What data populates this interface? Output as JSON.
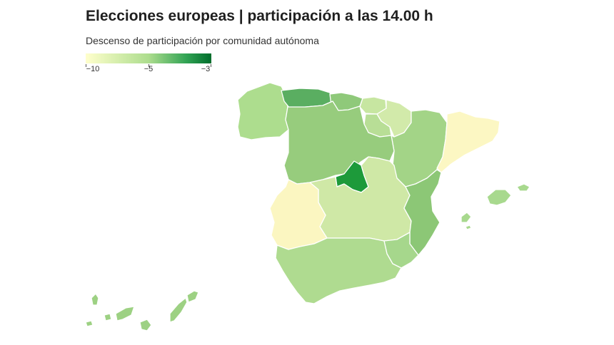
{
  "header": {
    "title": "Elecciones europeas | participación a las 14.00 h",
    "subtitle": "Descenso de participación por comunidad autónoma"
  },
  "legend": {
    "min_label": "−10",
    "mid_label": "−5",
    "max_label": "−3",
    "min_value": -10,
    "mid_value": -5,
    "max_value": -3,
    "colors": [
      "#ffffcc",
      "#addd8e",
      "#31a354",
      "#006d2c"
    ]
  },
  "regions": [
    {
      "name": "Galicia",
      "color": "#addd8e"
    },
    {
      "name": "Asturias",
      "color": "#5aae61"
    },
    {
      "name": "Cantabria",
      "color": "#8fc97a"
    },
    {
      "name": "País Vasco",
      "color": "#c7e6a1"
    },
    {
      "name": "Navarra",
      "color": "#d2eaaa"
    },
    {
      "name": "La Rioja",
      "color": "#b8de96"
    },
    {
      "name": "Aragón",
      "color": "#a3d487"
    },
    {
      "name": "Cataluña",
      "color": "#fcf7c3"
    },
    {
      "name": "Castilla y León",
      "color": "#97cc7d"
    },
    {
      "name": "Comunidad de Madrid",
      "color": "#1d9a3a"
    },
    {
      "name": "Castilla-La Mancha",
      "color": "#cfe8a6"
    },
    {
      "name": "Extremadura",
      "color": "#fbf6c1"
    },
    {
      "name": "Comunidad Valenciana",
      "color": "#8cc776"
    },
    {
      "name": "Región de Murcia",
      "color": "#a6d78c"
    },
    {
      "name": "Andalucía",
      "color": "#afdb90"
    },
    {
      "name": "Islas Baleares",
      "color": "#a8d98e"
    },
    {
      "name": "Canarias",
      "color": "#9dd183"
    }
  ]
}
